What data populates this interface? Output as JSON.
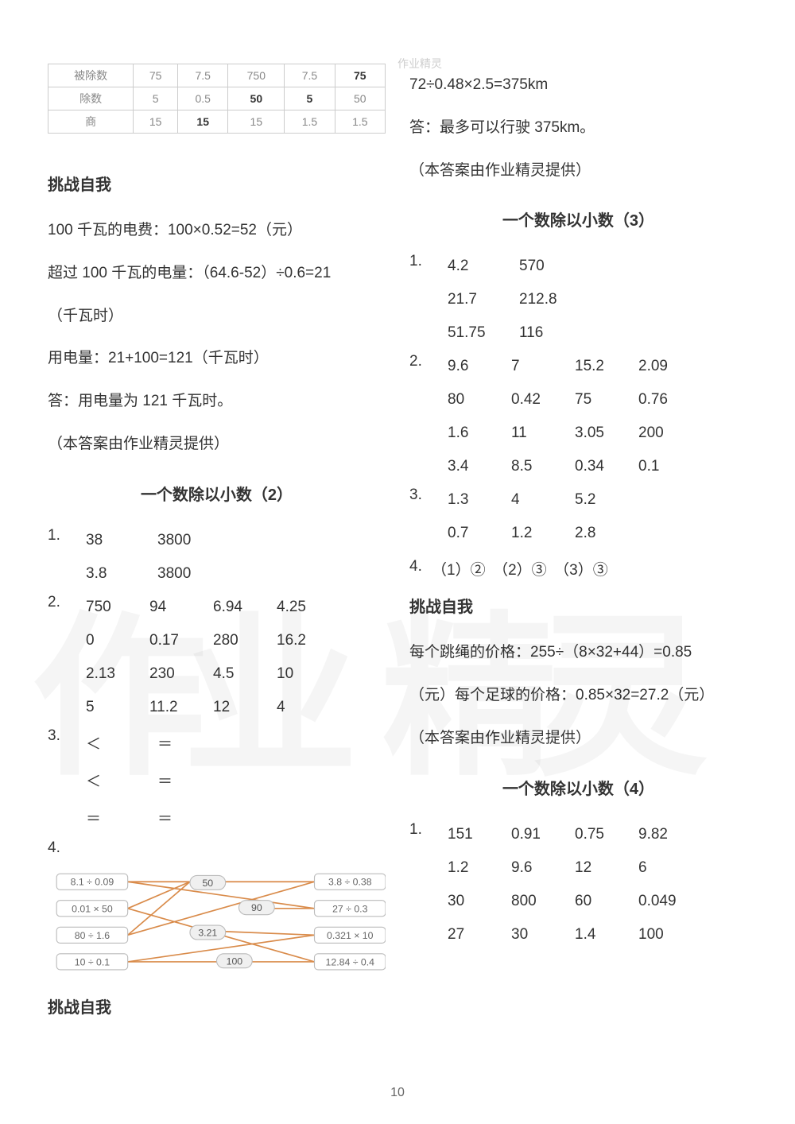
{
  "page_number": "10",
  "watermark_left": "作业",
  "watermark_right": "精灵",
  "wm_top": "作业精灵",
  "top_table": {
    "rows": [
      [
        "被除数",
        "75",
        "7.5",
        "750",
        "7.5",
        "75"
      ],
      [
        "除数",
        "5",
        "0.5",
        "50",
        "5",
        "50"
      ],
      [
        "商",
        "15",
        "15",
        "15",
        "1.5",
        "1.5"
      ]
    ],
    "bold_cells": [
      [
        0,
        5
      ],
      [
        1,
        3
      ],
      [
        1,
        4
      ],
      [
        2,
        2
      ]
    ]
  },
  "left": {
    "challenge_head": "挑战自我",
    "l1": "100 千瓦的电费：100×0.52=52（元）",
    "l2": "超过 100 千瓦的电量：（64.6-52）÷0.6=21",
    "l3": "（千瓦时）",
    "l4": "用电量：21+100=121（千瓦时）",
    "l5": "答：用电量为 121 千瓦时。",
    "l6": "（本答案由作业精灵提供）",
    "title2": "一个数除以小数（2）",
    "q1_idx": "1.",
    "q1_rows": [
      [
        "38",
        "3800"
      ],
      [
        "3.8",
        "3800"
      ]
    ],
    "q2_idx": "2.",
    "q2_rows": [
      [
        "750",
        "94",
        "6.94",
        "4.25"
      ],
      [
        "0",
        "0.17",
        "280",
        "16.2"
      ],
      [
        "2.13",
        "230",
        "4.5",
        "10"
      ],
      [
        "5",
        "11.2",
        "12",
        "4"
      ]
    ],
    "q3_idx": "3.",
    "q3_rows": [
      [
        "＜",
        "＝"
      ],
      [
        "＜",
        "＝"
      ],
      [
        "＝",
        "＝"
      ]
    ],
    "q4_idx": "4.",
    "diagram": {
      "left_exprs": [
        "8.1 ÷ 0.09",
        "0.01 × 50",
        "80 ÷ 1.6",
        "10 ÷ 0.1"
      ],
      "right_exprs": [
        "3.8 ÷ 0.38",
        "27 ÷ 0.3",
        "0.321 × 10",
        "12.84 ÷ 0.4"
      ],
      "clouds": [
        "50",
        "90",
        "3.21",
        "100"
      ],
      "line_color": "#d98b4a"
    },
    "challenge_head2": "挑战自我"
  },
  "right": {
    "r1": "72÷0.48×2.5=375km",
    "r2": "答：最多可以行驶 375km。",
    "r3": "（本答案由作业精灵提供）",
    "title3": "一个数除以小数（3）",
    "q1_idx": "1.",
    "q1_rows": [
      [
        "4.2",
        "570"
      ],
      [
        "21.7",
        "212.8"
      ],
      [
        "51.75",
        "116"
      ]
    ],
    "q2_idx": "2.",
    "q2_rows": [
      [
        "9.6",
        "7",
        "15.2",
        "2.09"
      ],
      [
        "80",
        "0.42",
        "75",
        "0.76"
      ],
      [
        "1.6",
        "11",
        "3.05",
        "200"
      ],
      [
        "3.4",
        "8.5",
        "0.34",
        "0.1"
      ]
    ],
    "q3_idx": "3.",
    "q3_rows": [
      [
        "1.3",
        "4",
        "5.2"
      ],
      [
        "0.7",
        "1.2",
        "2.8"
      ]
    ],
    "q4_idx": "4.",
    "q4_text": "（1）②　（2）③　（3）③",
    "challenge_head": "挑战自我",
    "c1": "每个跳绳的价格：255÷（8×32+44）=0.85",
    "c2": "（元）每个足球的价格：0.85×32=27.2（元）",
    "c3": "（本答案由作业精灵提供）",
    "title4": "一个数除以小数（4）",
    "s4_q1_idx": "1.",
    "s4_rows": [
      [
        "151",
        "0.91",
        "0.75",
        "9.82"
      ],
      [
        "1.2",
        "9.6",
        "12",
        "6"
      ],
      [
        "30",
        "800",
        "60",
        "0.049"
      ],
      [
        "27",
        "30",
        "1.4",
        "100"
      ]
    ]
  }
}
